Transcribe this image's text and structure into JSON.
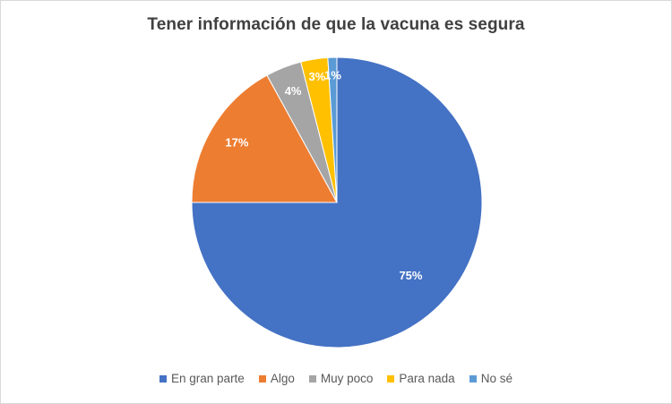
{
  "chart_data": {
    "type": "pie",
    "title": "Tener información de que la vacuna es segura",
    "categories": [
      "En gran parte",
      "Algo",
      "Muy poco",
      "Para nada",
      "No sé"
    ],
    "values": [
      75,
      17,
      4,
      3,
      1
    ],
    "labels": [
      "75%",
      "17%",
      "4%",
      "3%",
      "1%"
    ],
    "colors": [
      "#4472C4",
      "#ED7D31",
      "#A5A5A5",
      "#FFC000",
      "#5B9BD5"
    ],
    "start": "12 o'clock, clockwise",
    "legend_position": "bottom"
  }
}
